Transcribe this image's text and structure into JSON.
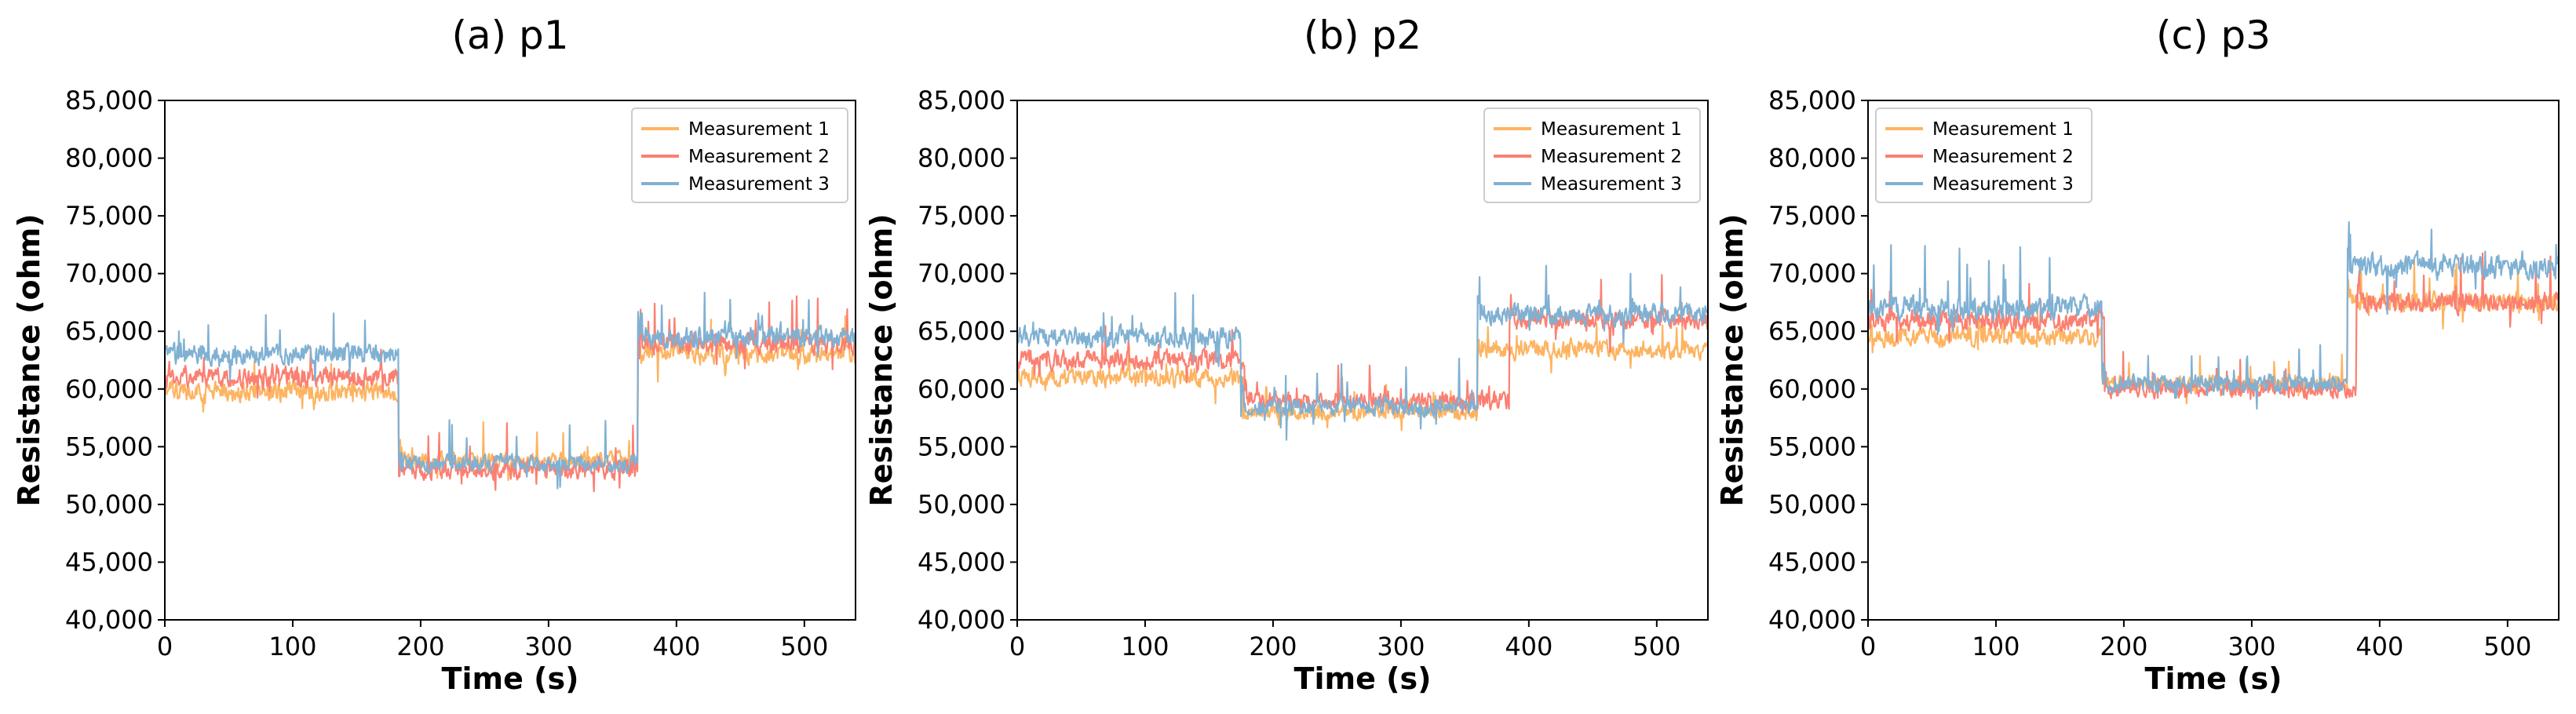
{
  "chart_data": [
    {
      "type": "line",
      "title": "(a) p1",
      "xlabel": "Time (s)",
      "ylabel": "Resistance (ohm)",
      "xlim": [
        0,
        540
      ],
      "ylim": [
        40000,
        85000
      ],
      "xticks": [
        "0",
        "100",
        "200",
        "300",
        "400",
        "500"
      ],
      "yticks": [
        "40,000",
        "45,000",
        "50,000",
        "55,000",
        "60,000",
        "65,000",
        "70,000",
        "75,000",
        "80,000",
        "85,000"
      ],
      "legend_position": "top-right",
      "series": [
        {
          "name": "Measurement 1",
          "color": "#FDB462",
          "segments": [
            {
              "start": 0,
              "end": 183,
              "mean": 59800,
              "noise": 1200,
              "spike": 2000
            },
            {
              "start": 183,
              "end": 370,
              "mean": 53800,
              "noise": 1000,
              "spike": 2500
            },
            {
              "start": 370,
              "end": 540,
              "mean": 63000,
              "noise": 1300,
              "spike": 2500
            }
          ]
        },
        {
          "name": "Measurement 2",
          "color": "#FB8072",
          "segments": [
            {
              "start": 0,
              "end": 183,
              "mean": 61000,
              "noise": 1200,
              "spike": 2000
            },
            {
              "start": 183,
              "end": 370,
              "mean": 53000,
              "noise": 1200,
              "spike": 3000
            },
            {
              "start": 370,
              "end": 540,
              "mean": 64000,
              "noise": 1300,
              "spike": 4000
            }
          ]
        },
        {
          "name": "Measurement 3",
          "color": "#80B1D3",
          "segments": [
            {
              "start": 0,
              "end": 183,
              "mean": 63000,
              "noise": 1300,
              "spike": 3500
            },
            {
              "start": 183,
              "end": 370,
              "mean": 53500,
              "noise": 1100,
              "spike": 3000
            },
            {
              "start": 370,
              "end": 540,
              "mean": 64500,
              "noise": 1300,
              "spike": 3000
            }
          ]
        }
      ]
    },
    {
      "type": "line",
      "title": "(b) p2",
      "xlabel": "Time (s)",
      "ylabel": "Resistance (ohm)",
      "xlim": [
        0,
        540
      ],
      "ylim": [
        40000,
        85000
      ],
      "xticks": [
        "0",
        "100",
        "200",
        "300",
        "400",
        "500"
      ],
      "yticks": [
        "40,000",
        "45,000",
        "50,000",
        "55,000",
        "60,000",
        "65,000",
        "70,000",
        "75,000",
        "80,000",
        "85,000"
      ],
      "legend_position": "top-right",
      "series": [
        {
          "name": "Measurement 1",
          "color": "#FDB462",
          "segments": [
            {
              "start": 0,
              "end": 175,
              "mean": 61000,
              "noise": 1200,
              "spike": 2000
            },
            {
              "start": 175,
              "end": 360,
              "mean": 58000,
              "noise": 1000,
              "spike": 2000
            },
            {
              "start": 360,
              "end": 540,
              "mean": 63500,
              "noise": 1200,
              "spike": 2500
            }
          ]
        },
        {
          "name": "Measurement 2",
          "color": "#FB8072",
          "segments": [
            {
              "start": 0,
              "end": 178,
              "mean": 62500,
              "noise": 1200,
              "spike": 2500
            },
            {
              "start": 178,
              "end": 385,
              "mean": 59000,
              "noise": 1100,
              "spike": 2500
            },
            {
              "start": 385,
              "end": 540,
              "mean": 66000,
              "noise": 1300,
              "spike": 3000
            }
          ]
        },
        {
          "name": "Measurement 3",
          "color": "#80B1D3",
          "segments": [
            {
              "start": 0,
              "end": 175,
              "mean": 64500,
              "noise": 1300,
              "spike": 3500
            },
            {
              "start": 175,
              "end": 360,
              "mean": 58500,
              "noise": 1100,
              "spike": 3000
            },
            {
              "start": 360,
              "end": 540,
              "mean": 66500,
              "noise": 1300,
              "spike": 3500
            }
          ]
        }
      ]
    },
    {
      "type": "line",
      "title": "(c) p3",
      "xlabel": "Time (s)",
      "ylabel": "Resistance (ohm)",
      "xlim": [
        0,
        540
      ],
      "ylim": [
        40000,
        85000
      ],
      "xticks": [
        "0",
        "100",
        "200",
        "300",
        "400",
        "500"
      ],
      "yticks": [
        "40,000",
        "45,000",
        "50,000",
        "55,000",
        "60,000",
        "65,000",
        "70,000",
        "75,000",
        "80,000",
        "85,000"
      ],
      "legend_position": "top-left",
      "series": [
        {
          "name": "Measurement 1",
          "color": "#FDB462",
          "segments": [
            {
              "start": 0,
              "end": 183,
              "mean": 64500,
              "noise": 1200,
              "spike": 2000
            },
            {
              "start": 183,
              "end": 375,
              "mean": 60500,
              "noise": 1000,
              "spike": 2000
            },
            {
              "start": 375,
              "end": 540,
              "mean": 67500,
              "noise": 1200,
              "spike": 3000
            }
          ]
        },
        {
          "name": "Measurement 2",
          "color": "#FB8072",
          "segments": [
            {
              "start": 0,
              "end": 185,
              "mean": 66000,
              "noise": 1300,
              "spike": 3000
            },
            {
              "start": 185,
              "end": 382,
              "mean": 60000,
              "noise": 1100,
              "spike": 2500
            },
            {
              "start": 382,
              "end": 540,
              "mean": 67500,
              "noise": 1300,
              "spike": 3000
            }
          ]
        },
        {
          "name": "Measurement 3",
          "color": "#80B1D3",
          "segments": [
            {
              "start": 0,
              "end": 183,
              "mean": 67000,
              "noise": 1400,
              "spike": 4000
            },
            {
              "start": 183,
              "end": 375,
              "mean": 60500,
              "noise": 1100,
              "spike": 2500
            },
            {
              "start": 375,
              "end": 540,
              "mean": 70500,
              "noise": 1600,
              "spike": 6000
            }
          ]
        }
      ]
    }
  ]
}
